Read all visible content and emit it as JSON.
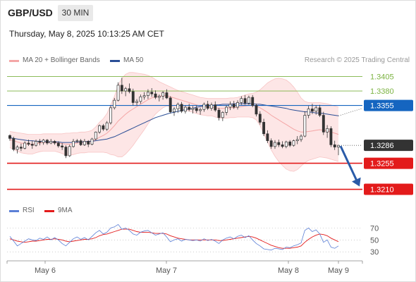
{
  "header": {
    "symbol": "GBP/USD",
    "timeframe": "30 MIN",
    "timestamp": "Thursday, May 8, 2025 10:13:25 AM CET"
  },
  "legend": {
    "bollinger_label": "MA 20 + Bollinger Bands",
    "ma50_label": "MA 50",
    "credit": "Research © 2025 Trading Central"
  },
  "rsi_legend": {
    "rsi_label": "RSI",
    "ma_label": "9MA"
  },
  "colors": {
    "bollinger": "#f4a6a6",
    "bollinger_fill": "#fde2e2",
    "ma50": "#2a4e96",
    "resistance_green": "#7cb342",
    "pivot_blue": "#1565c0",
    "support_red": "#e31b1b",
    "current_price_bg": "#333333",
    "arrow": "#2a5ba8",
    "candle": "#333333",
    "rsi": "#5b7fd6",
    "rsi_ma": "#e31b1b"
  },
  "chart_data": {
    "type": "candlestick",
    "x_labels": [
      "May 6",
      "May 7",
      "May 8",
      "May 9"
    ],
    "y_range": [
      1.3196,
      1.3413
    ],
    "levels": [
      {
        "value": 1.3405,
        "label": "1.3405",
        "kind": "resistance"
      },
      {
        "value": 1.338,
        "label": "1.3380",
        "kind": "resistance"
      },
      {
        "value": 1.3355,
        "label": "1.3355",
        "kind": "pivot"
      },
      {
        "value": 1.3286,
        "label": "1.3286",
        "kind": "current"
      },
      {
        "value": 1.3255,
        "label": "1.3255",
        "kind": "support"
      },
      {
        "value": 1.321,
        "label": "1.3210",
        "kind": "support"
      }
    ],
    "ohlc": [
      [
        1.3303,
        1.3305,
        1.3294,
        1.3298
      ],
      [
        1.3298,
        1.3301,
        1.3276,
        1.3279
      ],
      [
        1.3279,
        1.3286,
        1.3272,
        1.3283
      ],
      [
        1.3283,
        1.3289,
        1.3276,
        1.3281
      ],
      [
        1.3281,
        1.3293,
        1.3279,
        1.329
      ],
      [
        1.329,
        1.3296,
        1.3285,
        1.3288
      ],
      [
        1.3288,
        1.3294,
        1.328,
        1.3286
      ],
      [
        1.3286,
        1.3296,
        1.3284,
        1.3293
      ],
      [
        1.3293,
        1.3297,
        1.3286,
        1.3291
      ],
      [
        1.3291,
        1.3297,
        1.3287,
        1.3295
      ],
      [
        1.3295,
        1.3297,
        1.3287,
        1.329
      ],
      [
        1.329,
        1.3297,
        1.3288,
        1.3293
      ],
      [
        1.3293,
        1.3295,
        1.3287,
        1.329
      ],
      [
        1.329,
        1.3293,
        1.3282,
        1.3285
      ],
      [
        1.3285,
        1.329,
        1.3278,
        1.3283
      ],
      [
        1.3283,
        1.3286,
        1.3264,
        1.3268
      ],
      [
        1.3268,
        1.3287,
        1.3266,
        1.3284
      ],
      [
        1.3284,
        1.3297,
        1.3282,
        1.3293
      ],
      [
        1.3293,
        1.3297,
        1.329,
        1.3294
      ],
      [
        1.3294,
        1.3297,
        1.3285,
        1.3287
      ],
      [
        1.3287,
        1.3297,
        1.3285,
        1.3293
      ],
      [
        1.3293,
        1.3295,
        1.3283,
        1.3288
      ],
      [
        1.3288,
        1.3299,
        1.3286,
        1.3297
      ],
      [
        1.3297,
        1.331,
        1.3295,
        1.3309
      ],
      [
        1.3309,
        1.3322,
        1.3306,
        1.332
      ],
      [
        1.332,
        1.3323,
        1.3311,
        1.3314
      ],
      [
        1.3314,
        1.3328,
        1.3311,
        1.3325
      ],
      [
        1.3325,
        1.3355,
        1.3322,
        1.3351
      ],
      [
        1.3351,
        1.3368,
        1.3348,
        1.3364
      ],
      [
        1.3364,
        1.3395,
        1.3362,
        1.339
      ],
      [
        1.339,
        1.3403,
        1.3375,
        1.338
      ],
      [
        1.338,
        1.3387,
        1.3371,
        1.3384
      ],
      [
        1.3384,
        1.3393,
        1.3376,
        1.3379
      ],
      [
        1.3379,
        1.3384,
        1.3355,
        1.336
      ],
      [
        1.336,
        1.3366,
        1.3355,
        1.3362
      ],
      [
        1.3362,
        1.3374,
        1.3358,
        1.337
      ],
      [
        1.337,
        1.3378,
        1.3365,
        1.3372
      ],
      [
        1.3372,
        1.3383,
        1.3366,
        1.3378
      ],
      [
        1.3378,
        1.3385,
        1.337,
        1.3375
      ],
      [
        1.3375,
        1.3381,
        1.3366,
        1.3369
      ],
      [
        1.3369,
        1.3374,
        1.3362,
        1.3371
      ],
      [
        1.3371,
        1.338,
        1.3365,
        1.3377
      ],
      [
        1.3377,
        1.3383,
        1.3366,
        1.3368
      ],
      [
        1.3368,
        1.3371,
        1.3341,
        1.3344
      ],
      [
        1.3344,
        1.3352,
        1.3337,
        1.3349
      ],
      [
        1.3349,
        1.336,
        1.3342,
        1.3357
      ],
      [
        1.3357,
        1.3361,
        1.3342,
        1.3345
      ],
      [
        1.3345,
        1.3355,
        1.3341,
        1.3352
      ],
      [
        1.3352,
        1.3358,
        1.3345,
        1.3348
      ],
      [
        1.3348,
        1.3354,
        1.3341,
        1.335
      ],
      [
        1.335,
        1.3355,
        1.3342,
        1.3346
      ],
      [
        1.3346,
        1.3351,
        1.3339,
        1.3348
      ],
      [
        1.3348,
        1.336,
        1.3344,
        1.3357
      ],
      [
        1.3357,
        1.3363,
        1.3347,
        1.335
      ],
      [
        1.335,
        1.336,
        1.3346,
        1.3356
      ],
      [
        1.3356,
        1.3362,
        1.3344,
        1.3347
      ],
      [
        1.3347,
        1.3351,
        1.3329,
        1.3334
      ],
      [
        1.3334,
        1.3345,
        1.3328,
        1.3343
      ],
      [
        1.3343,
        1.3355,
        1.3338,
        1.3352
      ],
      [
        1.3352,
        1.3362,
        1.3347,
        1.3357
      ],
      [
        1.3357,
        1.3363,
        1.3349,
        1.3352
      ],
      [
        1.3352,
        1.3364,
        1.3348,
        1.336
      ],
      [
        1.336,
        1.3371,
        1.3356,
        1.3367
      ],
      [
        1.3367,
        1.3373,
        1.3356,
        1.3359
      ],
      [
        1.3359,
        1.3372,
        1.3356,
        1.3369
      ],
      [
        1.3369,
        1.3373,
        1.3352,
        1.3355
      ],
      [
        1.3355,
        1.3358,
        1.3336,
        1.334
      ],
      [
        1.334,
        1.3345,
        1.3322,
        1.3326
      ],
      [
        1.3326,
        1.3332,
        1.3302,
        1.3306
      ],
      [
        1.3306,
        1.3312,
        1.329,
        1.3294
      ],
      [
        1.3294,
        1.3298,
        1.328,
        1.3284
      ],
      [
        1.3284,
        1.3295,
        1.328,
        1.3291
      ],
      [
        1.3291,
        1.3296,
        1.3283,
        1.3287
      ],
      [
        1.3287,
        1.3293,
        1.3281,
        1.3284
      ],
      [
        1.3284,
        1.3294,
        1.3281,
        1.3292
      ],
      [
        1.3292,
        1.3295,
        1.3283,
        1.3286
      ],
      [
        1.3286,
        1.3296,
        1.3284,
        1.3294
      ],
      [
        1.3294,
        1.3302,
        1.3288,
        1.3296
      ],
      [
        1.3296,
        1.3305,
        1.3292,
        1.3302
      ],
      [
        1.3302,
        1.3345,
        1.33,
        1.3338
      ],
      [
        1.3338,
        1.3354,
        1.3333,
        1.3349
      ],
      [
        1.3349,
        1.3358,
        1.334,
        1.3345
      ],
      [
        1.3345,
        1.3355,
        1.3339,
        1.3351
      ],
      [
        1.3351,
        1.3356,
        1.3335,
        1.3338
      ],
      [
        1.3338,
        1.3344,
        1.3304,
        1.3309
      ],
      [
        1.3309,
        1.3321,
        1.3299,
        1.3315
      ],
      [
        1.3315,
        1.3319,
        1.3283,
        1.3287
      ],
      [
        1.3287,
        1.3294,
        1.3278,
        1.3283
      ],
      [
        1.3283,
        1.3287,
        1.3269,
        1.3286
      ]
    ],
    "bb_mid": [
      1.3296,
      1.3294,
      1.3292,
      1.329,
      1.3289,
      1.3288,
      1.3288,
      1.3289,
      1.329,
      1.3291,
      1.3291,
      1.3291,
      1.3291,
      1.329,
      1.3289,
      1.3288,
      1.3288,
      1.3289,
      1.329,
      1.3291,
      1.3291,
      1.3292,
      1.3293,
      1.3296,
      1.33,
      1.3303,
      1.3307,
      1.3313,
      1.332,
      1.3328,
      1.3334,
      1.334,
      1.3345,
      1.3349,
      1.3353,
      1.3357,
      1.3361,
      1.3365,
      1.3368,
      1.337,
      1.3371,
      1.3372,
      1.3372,
      1.337,
      1.3368,
      1.3366,
      1.3364,
      1.3362,
      1.336,
      1.3358,
      1.3356,
      1.3354,
      1.3353,
      1.3352,
      1.3352,
      1.3351,
      1.335,
      1.335,
      1.335,
      1.3351,
      1.3351,
      1.3352,
      1.3353,
      1.3354,
      1.3355,
      1.3355,
      1.3354,
      1.3351,
      1.3347,
      1.3343,
      1.3338,
      1.3334,
      1.333,
      1.3326,
      1.3322,
      1.3318,
      1.3314,
      1.3311,
      1.3309,
      1.3309,
      1.331,
      1.3311,
      1.3312,
      1.3313,
      1.3312,
      1.3311,
      1.3309,
      1.3307,
      1.3305
    ],
    "bb_upper": [
      1.331,
      1.3309,
      1.3308,
      1.3307,
      1.3306,
      1.3305,
      1.3305,
      1.3305,
      1.3305,
      1.3306,
      1.3306,
      1.3306,
      1.3306,
      1.3306,
      1.3306,
      1.3307,
      1.3307,
      1.3308,
      1.3308,
      1.3309,
      1.3309,
      1.331,
      1.3312,
      1.3318,
      1.3326,
      1.3332,
      1.3341,
      1.3356,
      1.3371,
      1.339,
      1.3402,
      1.3409,
      1.3412,
      1.3412,
      1.3411,
      1.341,
      1.3409,
      1.3407,
      1.3404,
      1.34,
      1.3396,
      1.3393,
      1.339,
      1.3387,
      1.3384,
      1.3381,
      1.3379,
      1.3377,
      1.3375,
      1.3373,
      1.3371,
      1.3369,
      1.3368,
      1.3367,
      1.3367,
      1.3367,
      1.3367,
      1.3367,
      1.3367,
      1.3368,
      1.3368,
      1.3369,
      1.3371,
      1.3373,
      1.3375,
      1.3376,
      1.3378,
      1.3382,
      1.3388,
      1.3394,
      1.3398,
      1.3401,
      1.3402,
      1.3401,
      1.3399,
      1.3394,
      1.3387,
      1.3378,
      1.3368,
      1.3362,
      1.336,
      1.336,
      1.336,
      1.336,
      1.3359,
      1.3358,
      1.3356,
      1.3354,
      1.3352
    ],
    "bb_lower": [
      1.3282,
      1.3279,
      1.3276,
      1.3273,
      1.3272,
      1.3271,
      1.3271,
      1.3273,
      1.3275,
      1.3276,
      1.3276,
      1.3276,
      1.3276,
      1.3274,
      1.3272,
      1.3269,
      1.3269,
      1.327,
      1.3272,
      1.3273,
      1.3273,
      1.3274,
      1.3274,
      1.3274,
      1.3274,
      1.3274,
      1.3273,
      1.327,
      1.3269,
      1.3266,
      1.3266,
      1.3271,
      1.3278,
      1.3286,
      1.3295,
      1.3304,
      1.3313,
      1.3323,
      1.3332,
      1.334,
      1.3346,
      1.3351,
      1.3354,
      1.3353,
      1.3352,
      1.3351,
      1.3349,
      1.3347,
      1.3345,
      1.3343,
      1.3341,
      1.3339,
      1.3338,
      1.3337,
      1.3337,
      1.3335,
      1.3333,
      1.3333,
      1.3333,
      1.3334,
      1.3334,
      1.3335,
      1.3335,
      1.3335,
      1.3335,
      1.3334,
      1.333,
      1.332,
      1.3306,
      1.3292,
      1.3278,
      1.3267,
      1.3258,
      1.3251,
      1.3245,
      1.3242,
      1.3241,
      1.3244,
      1.325,
      1.3256,
      1.326,
      1.3262,
      1.3264,
      1.3266,
      1.3265,
      1.3264,
      1.3262,
      1.326,
      1.3258
    ],
    "ma50": [
      1.3299,
      1.3298,
      1.3297,
      1.3296,
      1.3295,
      1.3294,
      1.3294,
      1.3293,
      1.3293,
      1.3293,
      1.3292,
      1.3292,
      1.3292,
      1.3292,
      1.3291,
      1.3291,
      1.3291,
      1.3291,
      1.3292,
      1.3292,
      1.3292,
      1.3293,
      1.3293,
      1.3294,
      1.3295,
      1.3296,
      1.3297,
      1.3299,
      1.3301,
      1.3304,
      1.3307,
      1.331,
      1.3313,
      1.3316,
      1.3319,
      1.3322,
      1.3325,
      1.3328,
      1.3331,
      1.3334,
      1.3336,
      1.3338,
      1.334,
      1.3342,
      1.3343,
      1.3345,
      1.3346,
      1.3348,
      1.3349,
      1.335,
      1.3352,
      1.3353,
      1.3354,
      1.3355,
      1.3355,
      1.3356,
      1.3356,
      1.3357,
      1.3357,
      1.3357,
      1.3358,
      1.3358,
      1.3358,
      1.3358,
      1.3358,
      1.3358,
      1.3357,
      1.3357,
      1.3356,
      1.3355,
      1.3354,
      1.3353,
      1.3352,
      1.3351,
      1.335,
      1.3348,
      1.3347,
      1.3346,
      1.3345,
      1.3344,
      1.3344,
      1.3343,
      1.3342,
      1.3342,
      1.3341,
      1.334,
      1.3339,
      1.3338,
      1.3337
    ],
    "forecast": {
      "from": 1.3286,
      "to": 1.321
    },
    "rsi": {
      "ticks": [
        70,
        50,
        30
      ],
      "range": [
        22,
        80
      ],
      "rsi": [
        56,
        48,
        40,
        44,
        48,
        52,
        50,
        49,
        53,
        51,
        55,
        50,
        54,
        50,
        44,
        40,
        46,
        52,
        55,
        51,
        54,
        50,
        56,
        62,
        66,
        60,
        63,
        70,
        72,
        76,
        68,
        70,
        66,
        60,
        58,
        63,
        65,
        66,
        62,
        58,
        60,
        62,
        55,
        47,
        50,
        52,
        48,
        51,
        50,
        49,
        50,
        48,
        52,
        49,
        51,
        48,
        44,
        50,
        53,
        55,
        52,
        56,
        58,
        54,
        57,
        50,
        44,
        40,
        35,
        34,
        33,
        36,
        35,
        34,
        38,
        37,
        40,
        42,
        45,
        66,
        70,
        64,
        67,
        60,
        46,
        50,
        38,
        36,
        40
      ],
      "ma": [
        52,
        50,
        48,
        47,
        46,
        47,
        48,
        48,
        49,
        50,
        51,
        51,
        52,
        51,
        50,
        48,
        47,
        48,
        49,
        50,
        51,
        51,
        52,
        54,
        57,
        59,
        60,
        62,
        64,
        66,
        68,
        68,
        68,
        66,
        64,
        63,
        63,
        63,
        62,
        61,
        61,
        61,
        60,
        57,
        55,
        53,
        52,
        51,
        50,
        50,
        50,
        50,
        50,
        50,
        50,
        50,
        49,
        49,
        50,
        51,
        52,
        53,
        54,
        55,
        56,
        55,
        53,
        50,
        47,
        44,
        41,
        39,
        37,
        36,
        36,
        36,
        37,
        38,
        40,
        46,
        51,
        55,
        58,
        60,
        59,
        57,
        53,
        50,
        47
      ]
    }
  }
}
